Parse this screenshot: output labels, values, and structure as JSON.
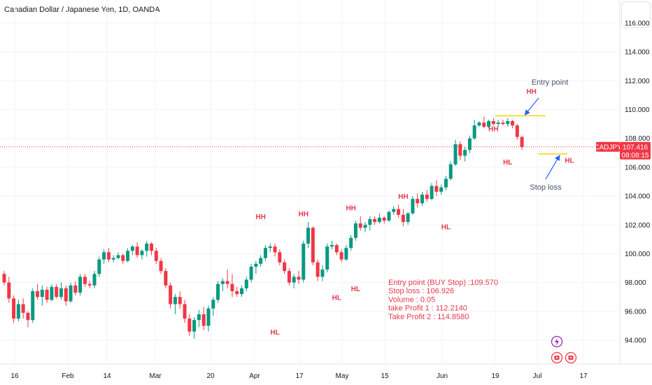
{
  "header": {
    "title": "Canadian Dollar / Japanese Yen, 1D, OANDA"
  },
  "chart_data": {
    "type": "candlestick",
    "symbol": "CADJPY",
    "ylim": [
      93.0,
      117.0
    ],
    "y_ticks": [
      "94.000",
      "96.000",
      "98.000",
      "100.000",
      "102.000",
      "104.000",
      "106.000",
      "108.000",
      "110.000",
      "112.000",
      "114.000",
      "116.000"
    ],
    "x_ticks": [
      "16",
      "Feb",
      "14",
      "Mar",
      "20",
      "Apr",
      "17",
      "May",
      "15",
      "Jun",
      "19",
      "Jul",
      "17"
    ],
    "last_price": "107.416",
    "countdown": "08:08:15",
    "colors": {
      "up": "#089981",
      "down": "#f23645",
      "annotation": "#e8394c",
      "level_line": "#f5d400",
      "arrow": "#2962ff"
    },
    "candles": [
      [
        98.6,
        98.8,
        97.8,
        98.0
      ],
      [
        98.0,
        98.4,
        96.6,
        96.9
      ],
      [
        96.9,
        97.1,
        95.2,
        95.5
      ],
      [
        95.5,
        96.8,
        95.3,
        96.5
      ],
      [
        96.5,
        96.9,
        95.5,
        95.9
      ],
      [
        95.9,
        96.0,
        94.9,
        95.4
      ],
      [
        95.4,
        97.6,
        95.2,
        97.4
      ],
      [
        97.4,
        97.9,
        96.8,
        97.0
      ],
      [
        97.0,
        97.8,
        96.4,
        97.5
      ],
      [
        97.5,
        97.7,
        96.6,
        96.8
      ],
      [
        96.8,
        97.9,
        96.7,
        97.7
      ],
      [
        97.7,
        97.9,
        96.9,
        97.0
      ],
      [
        97.0,
        98.0,
        96.8,
        97.6
      ],
      [
        97.6,
        97.8,
        96.4,
        96.7
      ],
      [
        96.7,
        98.0,
        96.6,
        97.8
      ],
      [
        97.8,
        98.1,
        97.1,
        97.3
      ],
      [
        97.3,
        98.6,
        97.1,
        98.4
      ],
      [
        98.4,
        98.6,
        97.7,
        97.9
      ],
      [
        97.9,
        98.1,
        97.6,
        97.8
      ],
      [
        97.8,
        98.8,
        97.6,
        98.6
      ],
      [
        98.6,
        99.8,
        98.4,
        99.6
      ],
      [
        99.6,
        100.3,
        99.3,
        100.1
      ],
      [
        100.1,
        100.4,
        99.4,
        99.6
      ],
      [
        99.6,
        99.9,
        99.4,
        99.7
      ],
      [
        99.7,
        100.1,
        99.6,
        99.9
      ],
      [
        99.9,
        100.0,
        99.3,
        99.5
      ],
      [
        99.5,
        100.4,
        99.4,
        100.2
      ],
      [
        100.2,
        100.6,
        99.9,
        100.5
      ],
      [
        100.5,
        100.8,
        99.7,
        99.9
      ],
      [
        99.9,
        100.3,
        99.6,
        100.2
      ],
      [
        100.2,
        100.9,
        99.8,
        100.7
      ],
      [
        100.7,
        100.8,
        99.9,
        100.2
      ],
      [
        100.2,
        100.4,
        99.3,
        99.5
      ],
      [
        99.5,
        99.7,
        98.6,
        98.8
      ],
      [
        98.8,
        99.0,
        97.6,
        97.8
      ],
      [
        97.8,
        98.0,
        96.2,
        96.5
      ],
      [
        96.5,
        97.2,
        95.8,
        97.0
      ],
      [
        97.0,
        97.4,
        96.2,
        96.5
      ],
      [
        96.5,
        96.8,
        95.2,
        95.5
      ],
      [
        95.5,
        95.8,
        94.3,
        94.6
      ],
      [
        94.6,
        95.6,
        94.1,
        95.4
      ],
      [
        95.4,
        96.1,
        94.9,
        95.8
      ],
      [
        95.8,
        96.3,
        94.7,
        95.0
      ],
      [
        95.0,
        96.4,
        94.6,
        96.2
      ],
      [
        96.2,
        97.0,
        95.7,
        96.8
      ],
      [
        96.8,
        98.1,
        96.6,
        97.9
      ],
      [
        97.9,
        98.3,
        97.4,
        98.1
      ],
      [
        98.1,
        98.9,
        97.6,
        97.9
      ],
      [
        97.9,
        98.6,
        97.0,
        97.4
      ],
      [
        97.4,
        97.7,
        97.0,
        97.2
      ],
      [
        97.2,
        97.8,
        97.0,
        97.6
      ],
      [
        97.6,
        98.4,
        97.4,
        98.2
      ],
      [
        98.2,
        99.3,
        98.0,
        99.1
      ],
      [
        99.1,
        99.5,
        98.6,
        99.3
      ],
      [
        99.3,
        99.9,
        99.1,
        99.7
      ],
      [
        99.7,
        100.6,
        99.5,
        100.4
      ],
      [
        100.4,
        100.7,
        100.1,
        100.5
      ],
      [
        100.5,
        100.7,
        99.8,
        100.1
      ],
      [
        100.1,
        100.3,
        99.2,
        99.4
      ],
      [
        99.4,
        99.6,
        98.6,
        98.8
      ],
      [
        98.8,
        99.0,
        97.8,
        98.0
      ],
      [
        98.0,
        98.6,
        97.6,
        98.4
      ],
      [
        98.4,
        98.8,
        97.9,
        98.2
      ],
      [
        98.2,
        100.9,
        98.0,
        100.7
      ],
      [
        100.7,
        102.2,
        100.4,
        101.8
      ],
      [
        101.8,
        101.9,
        99.2,
        99.4
      ],
      [
        99.4,
        99.6,
        98.1,
        98.4
      ],
      [
        98.4,
        99.2,
        98.1,
        98.9
      ],
      [
        98.9,
        100.7,
        98.7,
        100.5
      ],
      [
        100.5,
        100.9,
        100.3,
        100.6
      ],
      [
        100.6,
        100.7,
        99.9,
        100.1
      ],
      [
        100.1,
        100.3,
        99.4,
        99.6
      ],
      [
        99.6,
        100.6,
        99.5,
        100.4
      ],
      [
        100.4,
        101.3,
        100.2,
        101.1
      ],
      [
        101.1,
        102.3,
        100.9,
        102.1
      ],
      [
        102.1,
        102.6,
        101.6,
        101.8
      ],
      [
        101.8,
        102.2,
        101.5,
        102.0
      ],
      [
        102.0,
        102.6,
        101.6,
        102.4
      ],
      [
        102.4,
        102.6,
        102.0,
        102.2
      ],
      [
        102.2,
        102.8,
        102.1,
        102.5
      ],
      [
        102.5,
        102.6,
        102.1,
        102.3
      ],
      [
        102.3,
        103.0,
        102.2,
        102.9
      ],
      [
        102.9,
        103.3,
        102.7,
        103.1
      ],
      [
        103.1,
        103.4,
        102.5,
        102.7
      ],
      [
        102.7,
        103.1,
        101.9,
        102.2
      ],
      [
        102.2,
        102.9,
        102.0,
        102.8
      ],
      [
        102.8,
        104.0,
        102.7,
        103.8
      ],
      [
        103.8,
        104.2,
        103.2,
        103.5
      ],
      [
        103.5,
        104.3,
        103.3,
        104.1
      ],
      [
        104.1,
        104.4,
        103.6,
        103.8
      ],
      [
        103.8,
        104.9,
        103.7,
        104.7
      ],
      [
        104.7,
        105.1,
        104.0,
        104.3
      ],
      [
        104.3,
        104.8,
        104.1,
        104.6
      ],
      [
        104.6,
        105.4,
        104.4,
        105.2
      ],
      [
        105.2,
        106.4,
        105.1,
        106.2
      ],
      [
        106.2,
        107.9,
        106.1,
        107.6
      ],
      [
        107.6,
        107.8,
        106.5,
        106.8
      ],
      [
        106.8,
        107.4,
        106.4,
        107.2
      ],
      [
        107.2,
        108.2,
        107.0,
        108.0
      ],
      [
        108.0,
        109.3,
        107.9,
        108.9
      ],
      [
        108.9,
        109.2,
        108.8,
        109.1
      ],
      [
        109.1,
        109.5,
        108.7,
        108.8
      ],
      [
        108.8,
        109.3,
        108.7,
        109.2
      ],
      [
        109.2,
        109.4,
        108.9,
        109.0
      ],
      [
        109.0,
        109.3,
        108.8,
        109.1
      ],
      [
        109.1,
        109.3,
        108.9,
        109.0
      ],
      [
        109.0,
        109.4,
        108.8,
        109.2
      ],
      [
        109.2,
        109.3,
        108.7,
        108.9
      ],
      [
        108.9,
        109.0,
        107.9,
        108.1
      ],
      [
        108.1,
        108.2,
        107.2,
        107.4
      ]
    ],
    "annotations": [
      {
        "text": "HH",
        "x": 54,
        "y": 102.4
      },
      {
        "text": "HH",
        "x": 63,
        "y": 102.6
      },
      {
        "text": "HH",
        "x": 73,
        "y": 103.0
      },
      {
        "text": "HH",
        "x": 84,
        "y": 103.8
      },
      {
        "text": "HH",
        "x": 103,
        "y": 108.5
      },
      {
        "text": "HH",
        "x": 111,
        "y": 111.1
      },
      {
        "text": "HL",
        "x": 57,
        "y": 94.4
      },
      {
        "text": "HL",
        "x": 70,
        "y": 96.8
      },
      {
        "text": "HL",
        "x": 74,
        "y": 97.4
      },
      {
        "text": "HL",
        "x": 93,
        "y": 101.7
      },
      {
        "text": "HL",
        "x": 106,
        "y": 106.2
      },
      {
        "text": "HL",
        "x": 119,
        "y": 106.3
      }
    ],
    "callouts": {
      "entry": {
        "text": "Entry point",
        "level": 109.57
      },
      "stop": {
        "text": "Stop loss",
        "level": 106.926
      }
    },
    "info_text": [
      "Entry point (BUY Stop) :109.570",
      "Stop loss : 106.926",
      "Volume : 0.05",
      "take Profit 1 : 112.2140",
      "Take Profit 2 :  114.8580"
    ]
  }
}
